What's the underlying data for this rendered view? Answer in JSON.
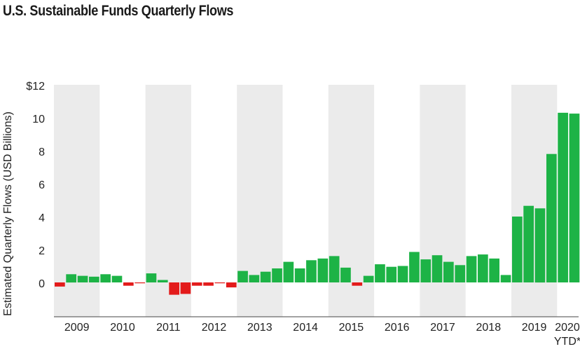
{
  "title": "U.S. Sustainable Funds Quarterly Flows",
  "chart_data": {
    "type": "bar",
    "title": "U.S. Sustainable Funds Quarterly Flows",
    "ylabel": "Estimated Quarterly Flows (USD Billions)",
    "xlabel": "",
    "ylim": [
      -1.5,
      12
    ],
    "yticks": [
      {
        "value": 12,
        "label": "$12"
      },
      {
        "value": 10,
        "label": "10"
      },
      {
        "value": 8,
        "label": "8"
      },
      {
        "value": 6,
        "label": "6"
      },
      {
        "value": 4,
        "label": "4"
      },
      {
        "value": 2,
        "label": "2"
      },
      {
        "value": 0,
        "label": "0"
      }
    ],
    "year_labels": [
      "2009",
      "2010",
      "2011",
      "2012",
      "2013",
      "2014",
      "2015",
      "2016",
      "2017",
      "2018",
      "2019",
      "2020"
    ],
    "year_sublabel": "YTD*",
    "alternating_year_bands": true,
    "colors": {
      "positive": "#1db346",
      "negative": "#e31b1b",
      "band": "#ebebeb"
    },
    "quarters_per_year": [
      4,
      4,
      4,
      4,
      4,
      4,
      4,
      4,
      4,
      4,
      4,
      2
    ],
    "values": [
      -0.25,
      0.5,
      0.4,
      0.35,
      0.5,
      0.4,
      -0.2,
      -0.05,
      0.55,
      0.15,
      -0.75,
      -0.7,
      -0.2,
      -0.2,
      -0.05,
      -0.3,
      0.7,
      0.45,
      0.65,
      0.85,
      1.25,
      0.85,
      1.35,
      1.45,
      1.6,
      0.9,
      -0.2,
      0.4,
      1.1,
      0.95,
      1.0,
      1.85,
      1.4,
      1.65,
      1.25,
      1.05,
      1.6,
      1.7,
      1.45,
      0.45,
      4.0,
      4.65,
      4.5,
      7.8,
      10.3,
      10.25
    ]
  }
}
